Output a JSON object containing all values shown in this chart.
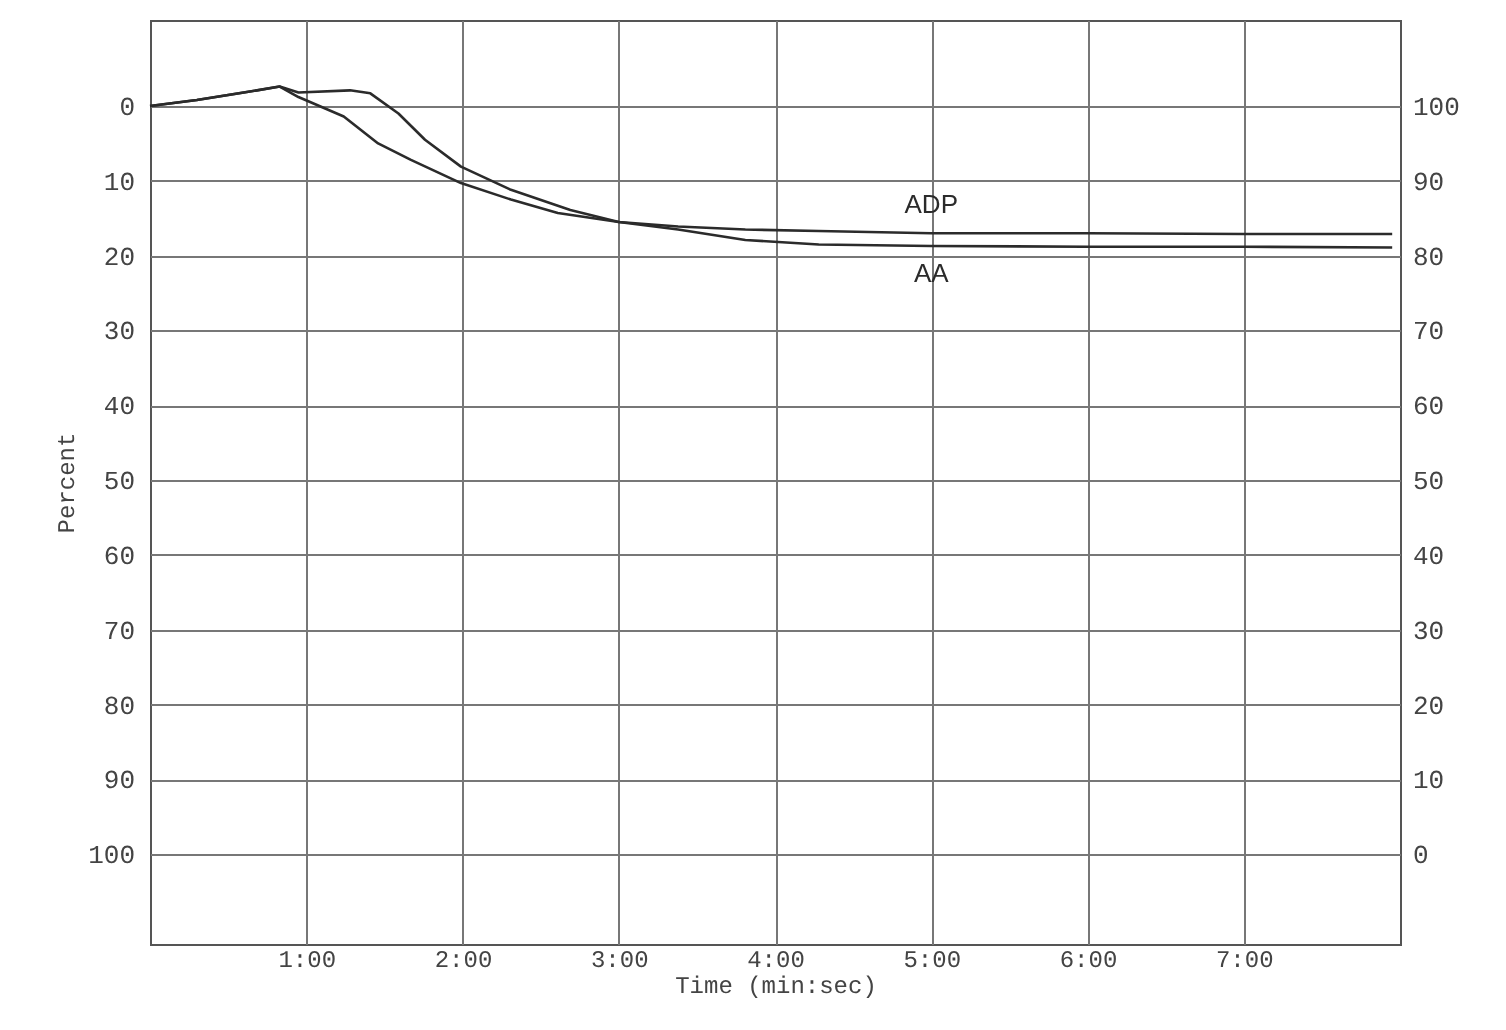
{
  "chart_data": {
    "type": "line",
    "xlabel": "Time (min:sec)",
    "ylabel": "Percent",
    "xlim": [
      0,
      8
    ],
    "xticks": [
      {
        "value": 1,
        "label": "1:00"
      },
      {
        "value": 2,
        "label": "2:00"
      },
      {
        "value": 3,
        "label": "3:00"
      },
      {
        "value": 4,
        "label": "4:00"
      },
      {
        "value": 5,
        "label": "5:00"
      },
      {
        "value": 6,
        "label": "6:00"
      },
      {
        "value": 7,
        "label": "7:00"
      }
    ],
    "ylim": [
      112,
      -11.5
    ],
    "yticks": [
      0,
      10,
      20,
      30,
      40,
      50,
      60,
      70,
      80,
      90,
      100
    ],
    "y2lim": [
      -12,
      111.5
    ],
    "y2ticks": [
      0,
      10,
      20,
      30,
      40,
      50,
      60,
      70,
      80,
      90,
      100
    ],
    "grid": true,
    "line_style": "solid",
    "series": [
      {
        "name": "ADP",
        "color": "#2b2b2b",
        "x": [
          0,
          0.3,
          0.6,
          0.83,
          0.95,
          1.28,
          1.41,
          1.59,
          1.76,
          1.99,
          2.31,
          2.69,
          3.0,
          3.38,
          3.81,
          4.28,
          5.0,
          6.0,
          7.0,
          7.95
        ],
        "values": [
          0,
          -0.8,
          -1.8,
          -2.6,
          -1.8,
          -2.1,
          -1.7,
          1,
          4.5,
          8.1,
          11.2,
          13.9,
          15.5,
          16.1,
          16.5,
          16.7,
          17,
          17,
          17.1,
          17.1
        ]
      },
      {
        "name": "AA",
        "color": "#2b2b2b",
        "x": [
          0,
          0.3,
          0.6,
          0.83,
          0.95,
          1.24,
          1.46,
          1.67,
          1.99,
          2.31,
          2.61,
          3.0,
          3.38,
          3.81,
          4.28,
          5.0,
          6.0,
          7.0,
          7.95
        ],
        "values": [
          0,
          -0.8,
          -1.8,
          -2.6,
          -1.2,
          1.4,
          5,
          7.2,
          10.3,
          12.5,
          14.3,
          15.5,
          16.5,
          17.9,
          18.5,
          18.7,
          18.8,
          18.8,
          18.9
        ]
      }
    ]
  }
}
